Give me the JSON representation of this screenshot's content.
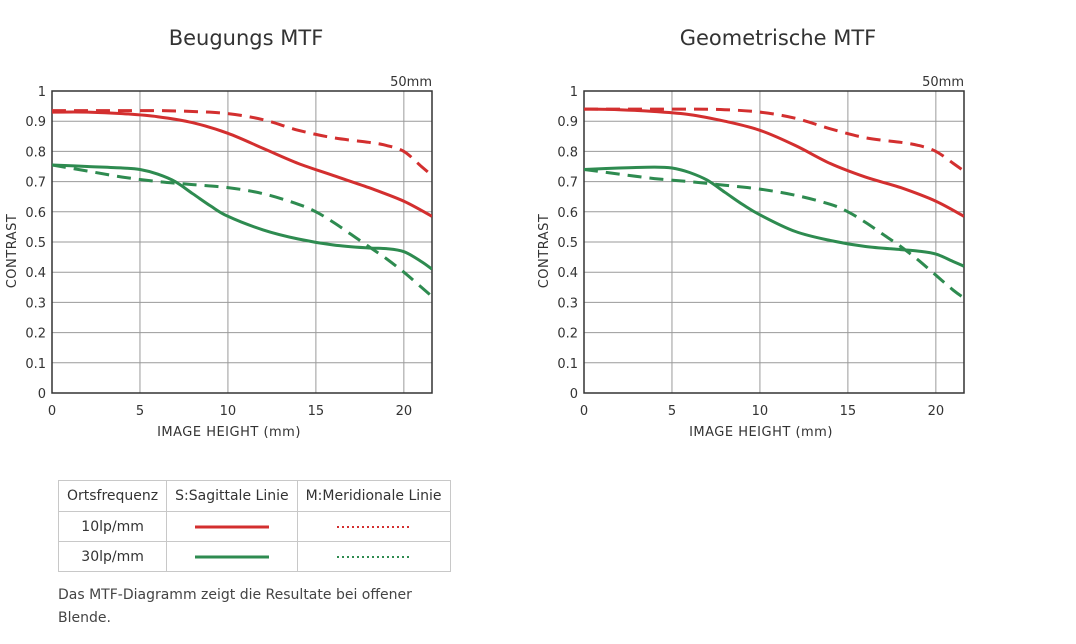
{
  "chart_data": [
    {
      "type": "line",
      "title": "Beugungs MTF",
      "focal_length_label": "50mm",
      "xlabel": "IMAGE HEIGHT (mm)",
      "ylabel": "CONTRAST",
      "xlim": [
        0,
        21.6
      ],
      "ylim": [
        0,
        1
      ],
      "x_ticks": [
        "0",
        "5",
        "10",
        "15",
        "20"
      ],
      "y_ticks": [
        "0",
        "0.1",
        "0.2",
        "0.3",
        "0.4",
        "0.5",
        "0.6",
        "0.7",
        "0.8",
        "0.9",
        "1"
      ],
      "grid": true,
      "series": [
        {
          "name": "10lp/mm S",
          "color": "#d32f2f",
          "style": "solid",
          "x": [
            0,
            2,
            4,
            6,
            8,
            10,
            12,
            14,
            16,
            18,
            20,
            21.6
          ],
          "y": [
            0.93,
            0.93,
            0.925,
            0.915,
            0.895,
            0.86,
            0.81,
            0.76,
            0.72,
            0.68,
            0.635,
            0.585
          ]
        },
        {
          "name": "10lp/mm M",
          "color": "#d32f2f",
          "style": "dashed",
          "x": [
            0,
            2,
            4,
            6,
            8,
            10,
            12,
            14,
            16,
            18,
            19,
            20,
            21,
            21.6
          ],
          "y": [
            0.935,
            0.935,
            0.935,
            0.935,
            0.932,
            0.925,
            0.905,
            0.87,
            0.845,
            0.83,
            0.82,
            0.8,
            0.75,
            0.72
          ]
        },
        {
          "name": "30lp/mm S",
          "color": "#2e8b50",
          "style": "solid",
          "x": [
            0,
            2,
            4,
            5,
            6,
            7,
            8,
            9,
            10,
            12,
            14,
            16,
            18,
            19,
            20,
            21,
            21.6
          ],
          "y": [
            0.755,
            0.75,
            0.745,
            0.74,
            0.725,
            0.7,
            0.66,
            0.62,
            0.585,
            0.54,
            0.51,
            0.49,
            0.48,
            0.478,
            0.468,
            0.435,
            0.41
          ]
        },
        {
          "name": "30lp/mm M",
          "color": "#2e8b50",
          "style": "dashed",
          "x": [
            0,
            2,
            4,
            6,
            8,
            10,
            12,
            14,
            15,
            16,
            17,
            18,
            19,
            20,
            21,
            21.6
          ],
          "y": [
            0.755,
            0.735,
            0.715,
            0.7,
            0.69,
            0.68,
            0.66,
            0.625,
            0.6,
            0.565,
            0.525,
            0.485,
            0.445,
            0.4,
            0.35,
            0.32
          ]
        }
      ]
    },
    {
      "type": "line",
      "title": "Geometrische MTF",
      "focal_length_label": "50mm",
      "xlabel": "IMAGE HEIGHT (mm)",
      "ylabel": "CONTRAST",
      "xlim": [
        0,
        21.6
      ],
      "ylim": [
        0,
        1
      ],
      "x_ticks": [
        "0",
        "5",
        "10",
        "15",
        "20"
      ],
      "y_ticks": [
        "0",
        "0.1",
        "0.2",
        "0.3",
        "0.4",
        "0.5",
        "0.6",
        "0.7",
        "0.8",
        "0.9",
        "1"
      ],
      "grid": true,
      "series": [
        {
          "name": "10lp/mm S",
          "color": "#d32f2f",
          "style": "solid",
          "x": [
            0,
            2,
            4,
            6,
            8,
            10,
            12,
            14,
            16,
            18,
            20,
            21.6
          ],
          "y": [
            0.94,
            0.938,
            0.932,
            0.922,
            0.9,
            0.87,
            0.82,
            0.76,
            0.715,
            0.68,
            0.635,
            0.585
          ]
        },
        {
          "name": "10lp/mm M",
          "color": "#d32f2f",
          "style": "dashed",
          "x": [
            0,
            2,
            4,
            6,
            8,
            10,
            12,
            14,
            16,
            18,
            19,
            20,
            21,
            21.6
          ],
          "y": [
            0.94,
            0.94,
            0.94,
            0.94,
            0.938,
            0.93,
            0.91,
            0.875,
            0.845,
            0.83,
            0.82,
            0.8,
            0.76,
            0.735
          ]
        },
        {
          "name": "30lp/mm S",
          "color": "#2e8b50",
          "style": "solid",
          "x": [
            0,
            2,
            4,
            5,
            6,
            7,
            8,
            9,
            10,
            12,
            14,
            16,
            18,
            19,
            20,
            21,
            21.6
          ],
          "y": [
            0.74,
            0.745,
            0.748,
            0.745,
            0.73,
            0.705,
            0.665,
            0.625,
            0.59,
            0.535,
            0.505,
            0.485,
            0.475,
            0.47,
            0.46,
            0.435,
            0.42
          ]
        },
        {
          "name": "30lp/mm M",
          "color": "#2e8b50",
          "style": "dashed",
          "x": [
            0,
            2,
            4,
            6,
            8,
            10,
            12,
            14,
            15,
            16,
            17,
            18,
            19,
            20,
            21,
            21.6
          ],
          "y": [
            0.74,
            0.725,
            0.71,
            0.7,
            0.688,
            0.675,
            0.655,
            0.625,
            0.6,
            0.565,
            0.525,
            0.485,
            0.44,
            0.39,
            0.34,
            0.315
          ]
        }
      ]
    }
  ],
  "legend_table": {
    "headers": [
      "Ortsfrequenz",
      "S:Sagittale Linie",
      "M:Meridionale Linie"
    ],
    "rows": [
      {
        "label": "10lp/mm",
        "color": "#d32f2f"
      },
      {
        "label": "30lp/mm",
        "color": "#2e8b50"
      }
    ]
  },
  "note": "Das MTF-Diagramm zeigt die Resultate bei offener Blende."
}
